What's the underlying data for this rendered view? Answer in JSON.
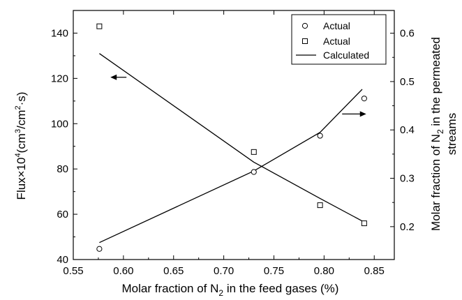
{
  "chart_data": {
    "type": "scatter",
    "title": "",
    "xlabel": {
      "prefix": "Molar fraction of N",
      "sub": "2",
      "suffix": " in the feed gases (%)"
    },
    "ylabel_left": {
      "p1": "Flux×10",
      "sup1": "4",
      "p2": "(cm",
      "sup2": "3",
      "p3": "/cm",
      "sup3": "2",
      "p4": "·s)"
    },
    "ylabel_right": {
      "line1_prefix": "Molar fraction of N",
      "line1_sub": "2",
      "line1_suffix": " in the permeated",
      "line2": "streams"
    },
    "xlim": [
      0.55,
      0.87
    ],
    "ylim_left": [
      40,
      150
    ],
    "ylim_right": [
      0.132,
      0.647
    ],
    "x_ticks": [
      "0.55",
      "0.60",
      "0.65",
      "0.70",
      "0.75",
      "0.80",
      "0.85"
    ],
    "y_left_ticks": [
      "40",
      "60",
      "80",
      "100",
      "120",
      "140"
    ],
    "y_right_ticks": [
      "0.2",
      "0.3",
      "0.4",
      "0.5",
      "0.6"
    ],
    "series": [
      {
        "name": "Actual",
        "marker": "circle",
        "axis": "right",
        "x": [
          0.576,
          0.73,
          0.796,
          0.84
        ],
        "y": [
          0.154,
          0.313,
          0.388,
          0.465
        ]
      },
      {
        "name": "Actual",
        "marker": "square",
        "axis": "left",
        "x": [
          0.576,
          0.73,
          0.796,
          0.84
        ],
        "y": [
          143,
          87.5,
          64,
          56
        ]
      }
    ],
    "calculated": {
      "name": "Calculated",
      "lines": [
        {
          "axis": "left",
          "x": [
            0.576,
            0.73,
            0.796,
            0.838
          ],
          "y": [
            131,
            83,
            67,
            57
          ]
        },
        {
          "axis": "right",
          "x": [
            0.576,
            0.73,
            0.796,
            0.838
          ],
          "y": [
            0.167,
            0.315,
            0.395,
            0.484
          ]
        }
      ]
    },
    "arrows": [
      {
        "direction": "left",
        "points_to": "left-axis"
      },
      {
        "direction": "right",
        "points_to": "right-axis"
      }
    ],
    "legend_position": "top-right",
    "grid": false
  }
}
